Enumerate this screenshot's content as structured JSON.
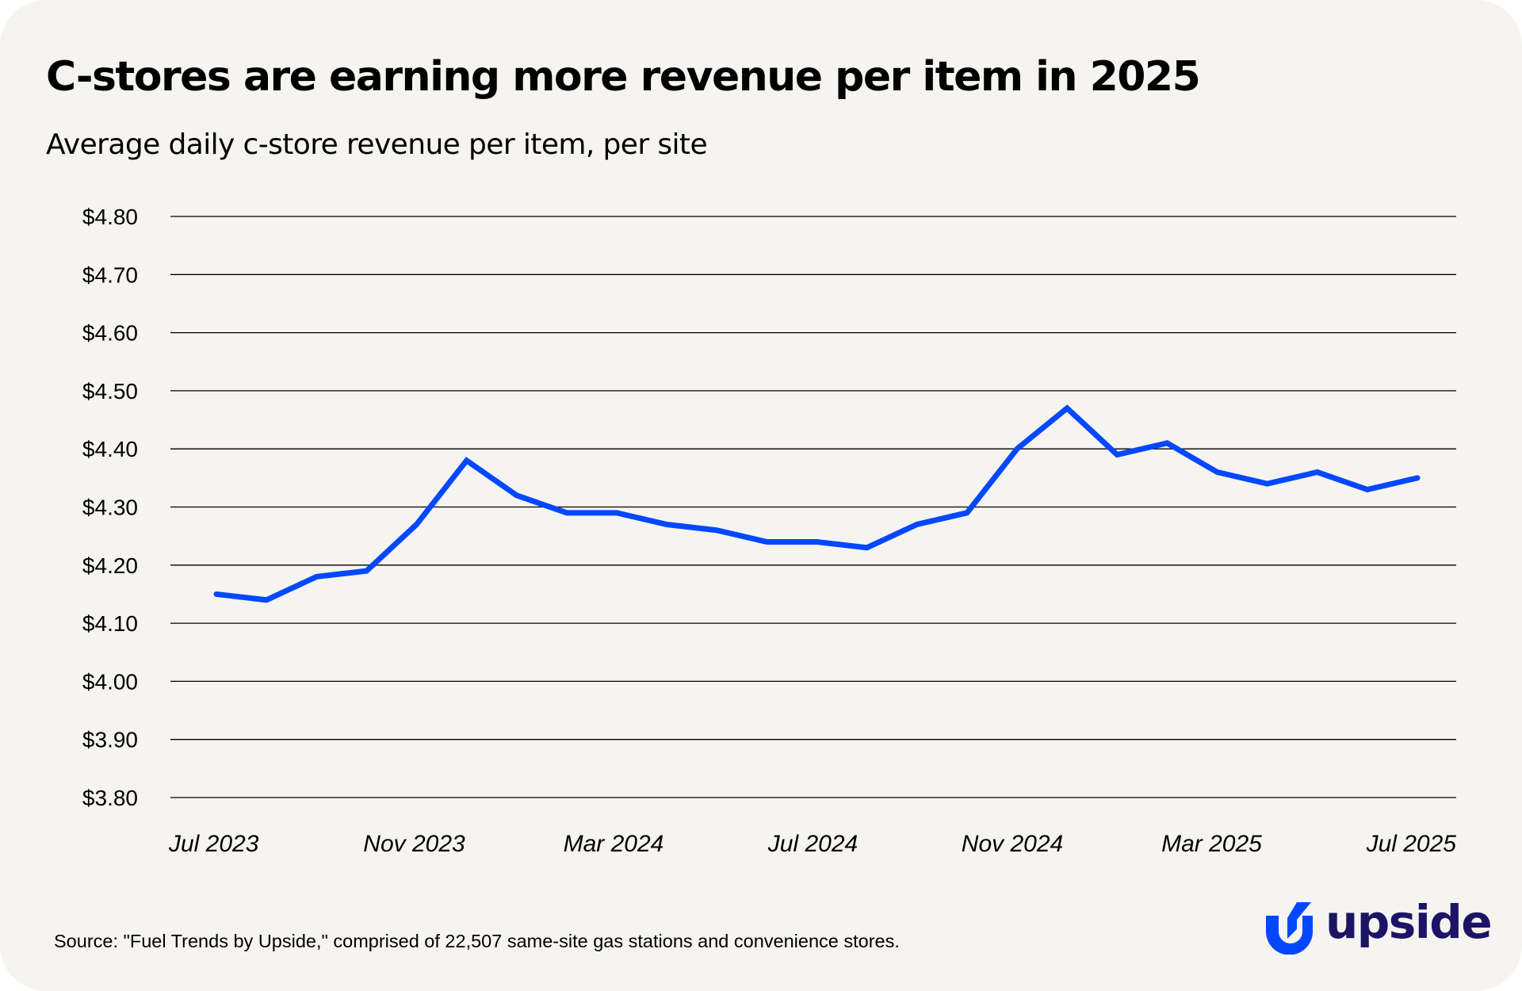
{
  "header": {
    "title": "C-stores are earning more revenue per item in 2025",
    "subtitle": "Average daily c-store revenue per item, per site"
  },
  "footer": {
    "source": "Source: \"Fuel Trends by Upside,\" comprised of 22,507 same-site gas stations and convenience stores.",
    "logo_text": "upside",
    "logo_icon": "upside-u-arrow-icon"
  },
  "colors": {
    "background": "#f5f4f1",
    "line": "#0048ff",
    "gridline": "#000000",
    "logo_mark": "#0048ff",
    "logo_text": "#1c1464"
  },
  "chart_data": {
    "type": "line",
    "title": "C-stores are earning more revenue per item in 2025",
    "subtitle": "Average daily c-store revenue per item, per site",
    "xlabel": "",
    "ylabel": "",
    "x": [
      "Jul 2023",
      "Aug 2023",
      "Sep 2023",
      "Oct 2023",
      "Nov 2023",
      "Dec 2023",
      "Jan 2024",
      "Feb 2024",
      "Mar 2024",
      "Apr 2024",
      "May 2024",
      "Jun 2024",
      "Jul 2024",
      "Aug 2024",
      "Sep 2024",
      "Oct 2024",
      "Nov 2024",
      "Dec 2024",
      "Jan 2025",
      "Feb 2025",
      "Mar 2025",
      "Apr 2025",
      "May 2025",
      "Jun 2025",
      "Jul 2025"
    ],
    "series": [
      {
        "name": "Average daily c-store revenue per item, per site",
        "values": [
          4.15,
          4.14,
          4.18,
          4.19,
          4.27,
          4.38,
          4.32,
          4.29,
          4.29,
          4.27,
          4.26,
          4.24,
          4.24,
          4.23,
          4.27,
          4.29,
          4.4,
          4.47,
          4.39,
          4.41,
          4.36,
          4.34,
          4.36,
          4.33,
          4.35
        ]
      }
    ],
    "x_tick_labels": [
      "Jul 2023",
      "Nov 2023",
      "Mar 2024",
      "Jul 2024",
      "Nov 2024",
      "Mar 2025",
      "Jul 2025"
    ],
    "y_ticks": [
      4.8,
      4.7,
      4.6,
      4.5,
      4.4,
      4.3,
      4.2,
      4.1,
      4.0,
      3.9,
      3.8
    ],
    "y_tick_labels": [
      "$4.80",
      "$4.70",
      "$4.60",
      "$4.50",
      "$4.40",
      "$4.30",
      "$4.20",
      "$4.10",
      "$4.00",
      "$3.90",
      "$3.80"
    ],
    "ylim": [
      3.8,
      4.8
    ],
    "grid": "horizontal",
    "legend": "none"
  }
}
